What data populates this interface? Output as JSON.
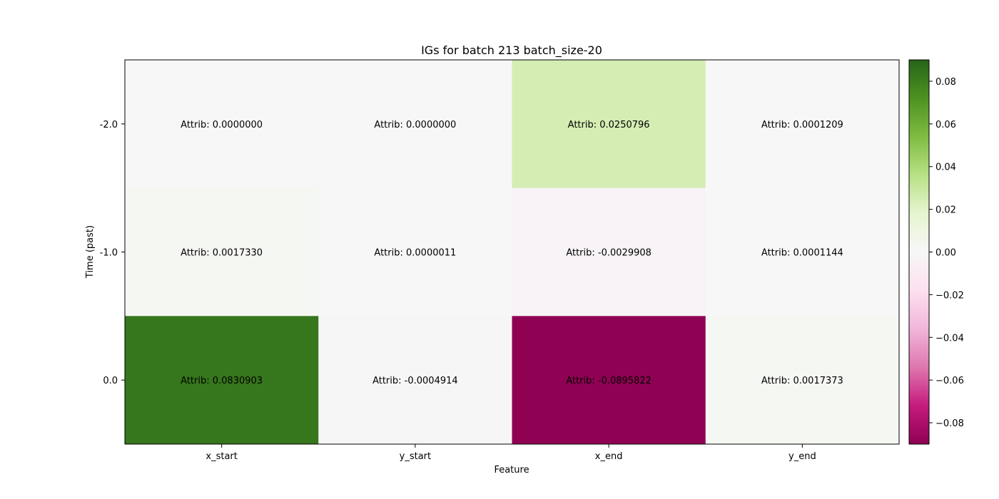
{
  "chart_data": {
    "type": "heatmap",
    "title": "IGs for batch 213 batch_size-20",
    "xlabel": "Feature",
    "ylabel": "Time (past)",
    "x_categories": [
      "x_start",
      "y_start",
      "x_end",
      "y_end"
    ],
    "y_categories": [
      "-2.0",
      "-1.0",
      "0.0"
    ],
    "value_label_prefix": "Attrib: ",
    "values": [
      [
        0.0,
        0.0,
        0.0250796,
        0.0001209
      ],
      [
        0.001733,
        1.1e-06,
        -0.0029908,
        0.0001144
      ],
      [
        0.0830903,
        -0.0004914,
        -0.0895822,
        0.0017373
      ]
    ],
    "cell_labels": [
      [
        "Attrib: 0.0000000",
        "Attrib: 0.0000000",
        "Attrib: 0.0250796",
        "Attrib: 0.0001209"
      ],
      [
        "Attrib: 0.0017330",
        "Attrib: 0.0000011",
        "Attrib: -0.0029908",
        "Attrib: 0.0001144"
      ],
      [
        "Attrib: 0.0830903",
        "Attrib: -0.0004914",
        "Attrib: -0.0895822",
        "Attrib: 0.0017373"
      ]
    ],
    "colormap": "PiYG",
    "vmin": -0.09,
    "vmax": 0.09,
    "colorbar": {
      "ticks": [
        0.08,
        0.06,
        0.04,
        0.02,
        0.0,
        -0.02,
        -0.04,
        -0.06,
        -0.08
      ],
      "tick_labels": [
        "0.08",
        "0.06",
        "0.04",
        "0.02",
        "0.00",
        "−0.02",
        "−0.04",
        "−0.06",
        "−0.08"
      ]
    },
    "grid": false,
    "colors": {
      "max_color": "#276419",
      "mid_color": "#f7f7f7",
      "min_color": "#8e0152"
    }
  }
}
